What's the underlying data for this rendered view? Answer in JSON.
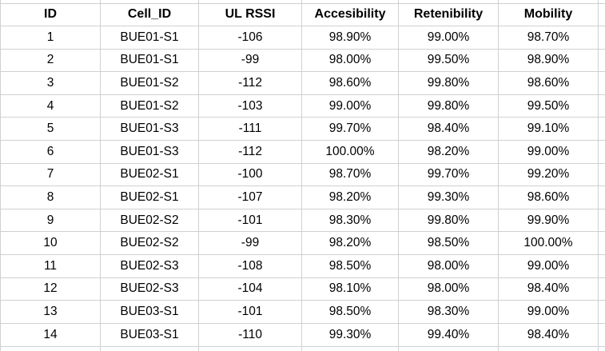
{
  "table": {
    "columns": [
      {
        "label": "ID"
      },
      {
        "label": "Cell_ID"
      },
      {
        "label": "UL RSSI"
      },
      {
        "label": "Accesibility"
      },
      {
        "label": "Retenibility"
      },
      {
        "label": "Mobility"
      }
    ],
    "rows": [
      [
        "1",
        "BUE01-S1",
        "-106",
        "98.90%",
        "99.00%",
        "98.70%"
      ],
      [
        "2",
        "BUE01-S1",
        "-99",
        "98.00%",
        "99.50%",
        "98.90%"
      ],
      [
        "3",
        "BUE01-S2",
        "-112",
        "98.60%",
        "99.80%",
        "98.60%"
      ],
      [
        "4",
        "BUE01-S2",
        "-103",
        "99.00%",
        "99.80%",
        "99.50%"
      ],
      [
        "5",
        "BUE01-S3",
        "-111",
        "99.70%",
        "98.40%",
        "99.10%"
      ],
      [
        "6",
        "BUE01-S3",
        "-112",
        "100.00%",
        "98.20%",
        "99.00%"
      ],
      [
        "7",
        "BUE02-S1",
        "-100",
        "98.70%",
        "99.70%",
        "99.20%"
      ],
      [
        "8",
        "BUE02-S1",
        "-107",
        "98.20%",
        "99.30%",
        "98.60%"
      ],
      [
        "9",
        "BUE02-S2",
        "-101",
        "98.30%",
        "99.80%",
        "99.90%"
      ],
      [
        "10",
        "BUE02-S2",
        "-99",
        "98.20%",
        "98.50%",
        "100.00%"
      ],
      [
        "11",
        "BUE02-S3",
        "-108",
        "98.50%",
        "98.00%",
        "99.00%"
      ],
      [
        "12",
        "BUE02-S3",
        "-104",
        "98.10%",
        "98.00%",
        "98.40%"
      ],
      [
        "13",
        "BUE03-S1",
        "-101",
        "98.50%",
        "98.30%",
        "99.00%"
      ],
      [
        "14",
        "BUE03-S1",
        "-110",
        "99.30%",
        "99.40%",
        "98.40%"
      ]
    ]
  },
  "colors": {
    "gridline": "#d0d0d0",
    "background": "#ffffff",
    "text": "#000000"
  }
}
